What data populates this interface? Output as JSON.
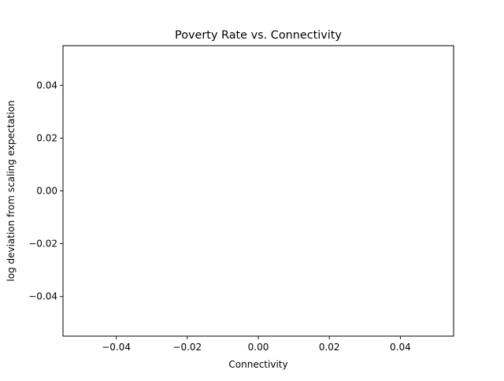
{
  "chart_data": {
    "type": "scatter",
    "title": "Poverty Rate vs. Connectivity",
    "xlabel": "Connectivity",
    "ylabel": "log deviation from scaling expectation",
    "xlim": [
      -0.055,
      0.055
    ],
    "ylim": [
      -0.055,
      0.055
    ],
    "x_ticks": [
      -0.04,
      -0.02,
      0.0,
      0.02,
      0.04
    ],
    "x_tick_labels": [
      "−0.04",
      "−0.02",
      "0.00",
      "0.02",
      "0.04"
    ],
    "y_ticks": [
      -0.04,
      -0.02,
      0.0,
      0.02,
      0.04
    ],
    "y_tick_labels": [
      "−0.04",
      "−0.02",
      "0.00",
      "0.02",
      "0.04"
    ],
    "grid": false,
    "legend": "none",
    "series": [
      {
        "x": [],
        "y": []
      }
    ],
    "colors": {
      "axes": "#000000",
      "background": "#ffffff"
    }
  }
}
